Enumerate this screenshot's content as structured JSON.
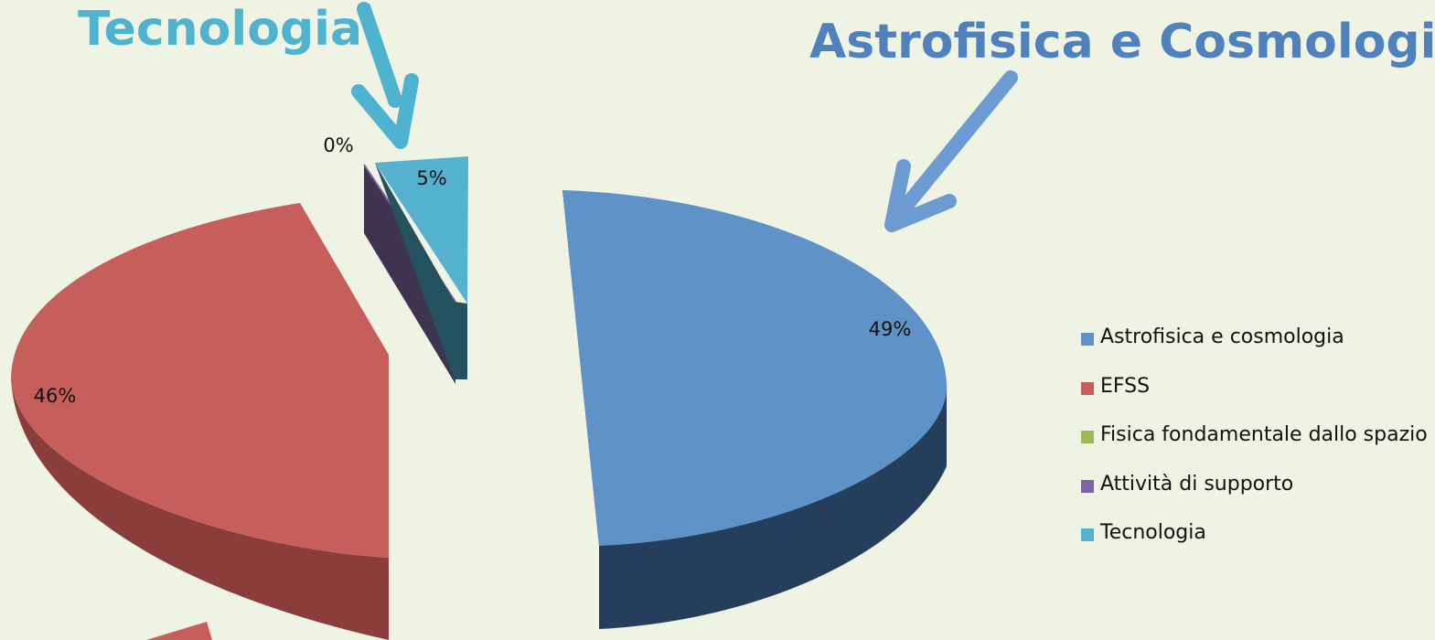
{
  "callouts": {
    "tecnologia": "Tecnologia",
    "astrofisica": "Astrofisica e Cosmologia"
  },
  "colors": {
    "callout_tecnologia": "#4fb3cf",
    "callout_astrofisica": "#4f81bd"
  },
  "chart_data": {
    "type": "pie",
    "style": "3d-exploded",
    "categories": [
      "Astrofisica e cosmologia",
      "EFSS",
      "Fisica fondamentale dallo spazio",
      "Attività di supporto",
      "Tecnologia"
    ],
    "values": [
      49,
      46,
      0,
      0,
      5
    ],
    "data_labels": [
      "49%",
      "46%",
      "",
      "0%",
      "5%"
    ],
    "colors": [
      "#5f92c6",
      "#c65f5b",
      "#9bbb59",
      "#8064a2",
      "#54b2cf"
    ],
    "side_colors": [
      "#243e5c",
      "#8a3d3a",
      "#6b8a3a",
      "#3e3350",
      "#24525e"
    ],
    "legend": {
      "position": "right",
      "entries": [
        "Astrofisica e cosmologia",
        "EFSS",
        "Fisica fondamentale dallo spazio",
        "Attività di supporto",
        "Tecnologia"
      ]
    }
  }
}
